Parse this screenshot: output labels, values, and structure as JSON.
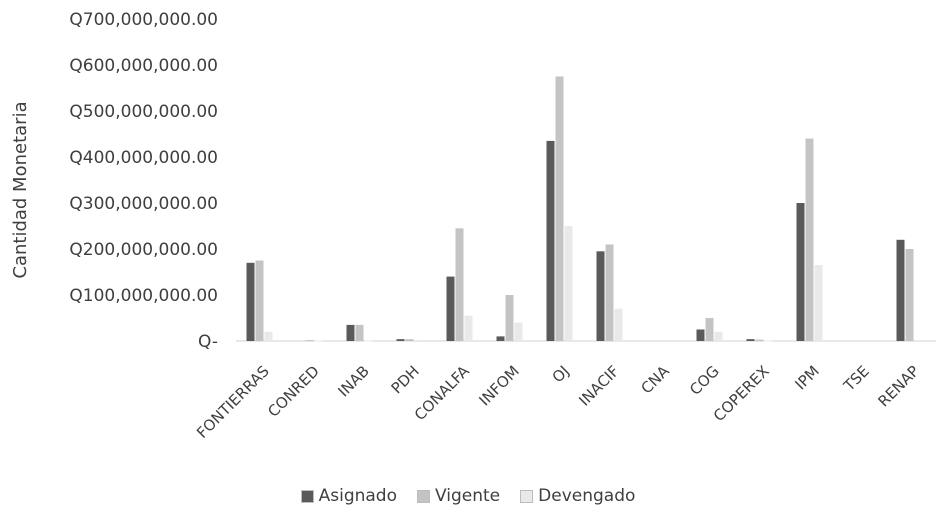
{
  "chart_data": {
    "type": "bar",
    "title": "",
    "ylabel": "Cantidad Monetaria",
    "xlabel": "",
    "ylim": [
      0,
      700000000
    ],
    "y_ticks": [
      0,
      100000000,
      200000000,
      300000000,
      400000000,
      500000000,
      600000000,
      700000000
    ],
    "y_tick_labels": [
      "Q-",
      "Q100,000,000.00",
      "Q200,000,000.00",
      "Q300,000,000.00",
      "Q400,000,000.00",
      "Q500,000,000.00",
      "Q600,000,000.00",
      "Q700,000,000.00"
    ],
    "categories": [
      "FONTIERRAS",
      "CONRED",
      "INAB",
      "PDH",
      "CONALFA",
      "INFOM",
      "OJ",
      "INACIF",
      "CNA",
      "COG",
      "COPEREX",
      "IPM",
      "TSE",
      "RENAP"
    ],
    "series": [
      {
        "name": "Asignado",
        "color": "#5a5a5a",
        "values": [
          170000000,
          0,
          35000000,
          4000000,
          140000000,
          10000000,
          435000000,
          195000000,
          0,
          25000000,
          4000000,
          300000000,
          0,
          220000000
        ]
      },
      {
        "name": "Vigente",
        "color": "#c4c4c4",
        "values": [
          175000000,
          2000000,
          35000000,
          4000000,
          245000000,
          100000000,
          575000000,
          210000000,
          0,
          50000000,
          3000000,
          440000000,
          0,
          200000000
        ]
      },
      {
        "name": "Devengado",
        "color": "#e9e9e9",
        "values": [
          20000000,
          1000000,
          1000000,
          2000000,
          55000000,
          40000000,
          250000000,
          70000000,
          0,
          20000000,
          1000000,
          165000000,
          0,
          0
        ]
      }
    ],
    "grid": false,
    "legend_position": "bottom"
  }
}
